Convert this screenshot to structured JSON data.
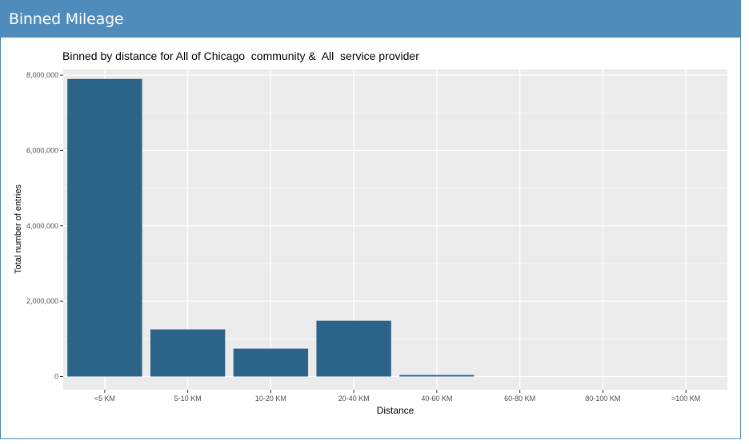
{
  "panel": {
    "title": "Binned Mileage"
  },
  "colors": {
    "header_bg": "#4f8bbb",
    "bar_fill": "#2b6488",
    "plot_bg": "#ebebeb",
    "grid": "#ffffff"
  },
  "chart_data": {
    "type": "bar",
    "title": "Binned by distance for All of Chicago  community &  All  service provider",
    "xlabel": "Distance",
    "ylabel": "Total number of entries",
    "categories": [
      "<5 KM",
      "5-10 KM",
      "10-20 KM",
      "20-40 KM",
      "40-60 KM",
      "60-80 KM",
      "80-100 KM",
      ">100 KM"
    ],
    "values": [
      7900000,
      1250000,
      740000,
      1480000,
      40000,
      0,
      0,
      0
    ],
    "ylim": [
      -350000,
      8150000
    ],
    "y_ticks": [
      0,
      2000000,
      4000000,
      6000000,
      8000000
    ],
    "y_tick_labels": [
      "0",
      "2,000,000",
      "4,000,000",
      "6,000,000",
      "8,000,000"
    ],
    "grid": true,
    "legend": "none"
  }
}
